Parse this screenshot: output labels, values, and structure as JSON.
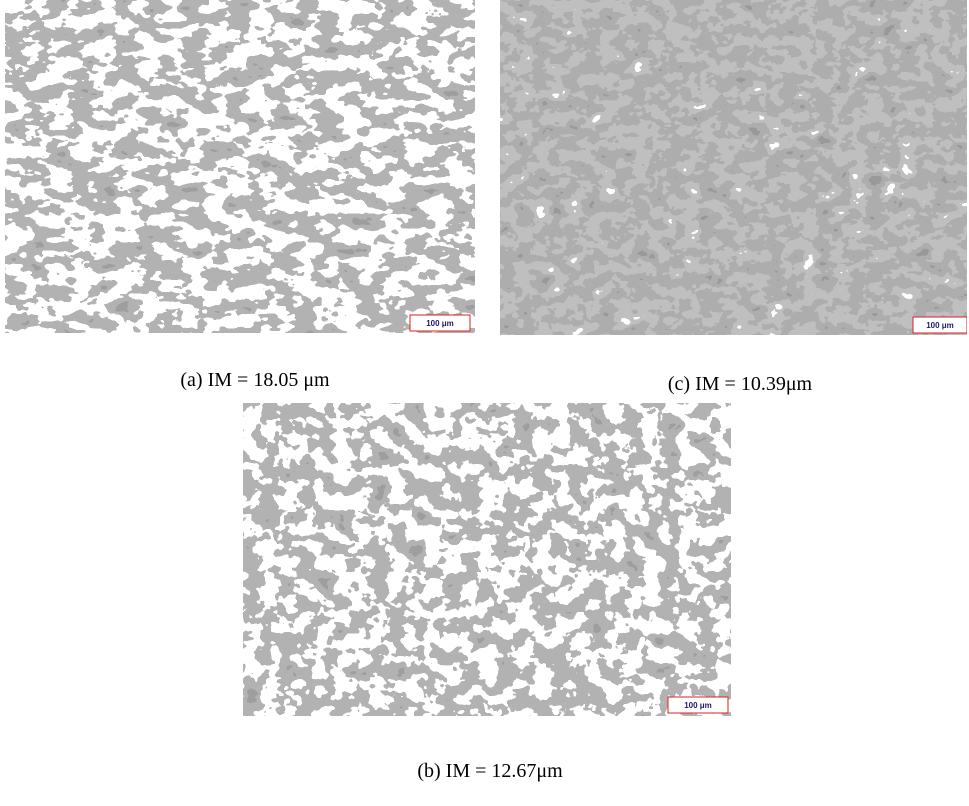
{
  "panels": [
    {
      "caption": "(a) IM = 18.05 μm",
      "scale_label": "100 μm"
    },
    {
      "caption": "(c) IM = 10.39μm",
      "scale_label": "100 μm"
    },
    {
      "caption": "(b) IM = 12.67μm",
      "scale_label": "100 μm"
    }
  ]
}
